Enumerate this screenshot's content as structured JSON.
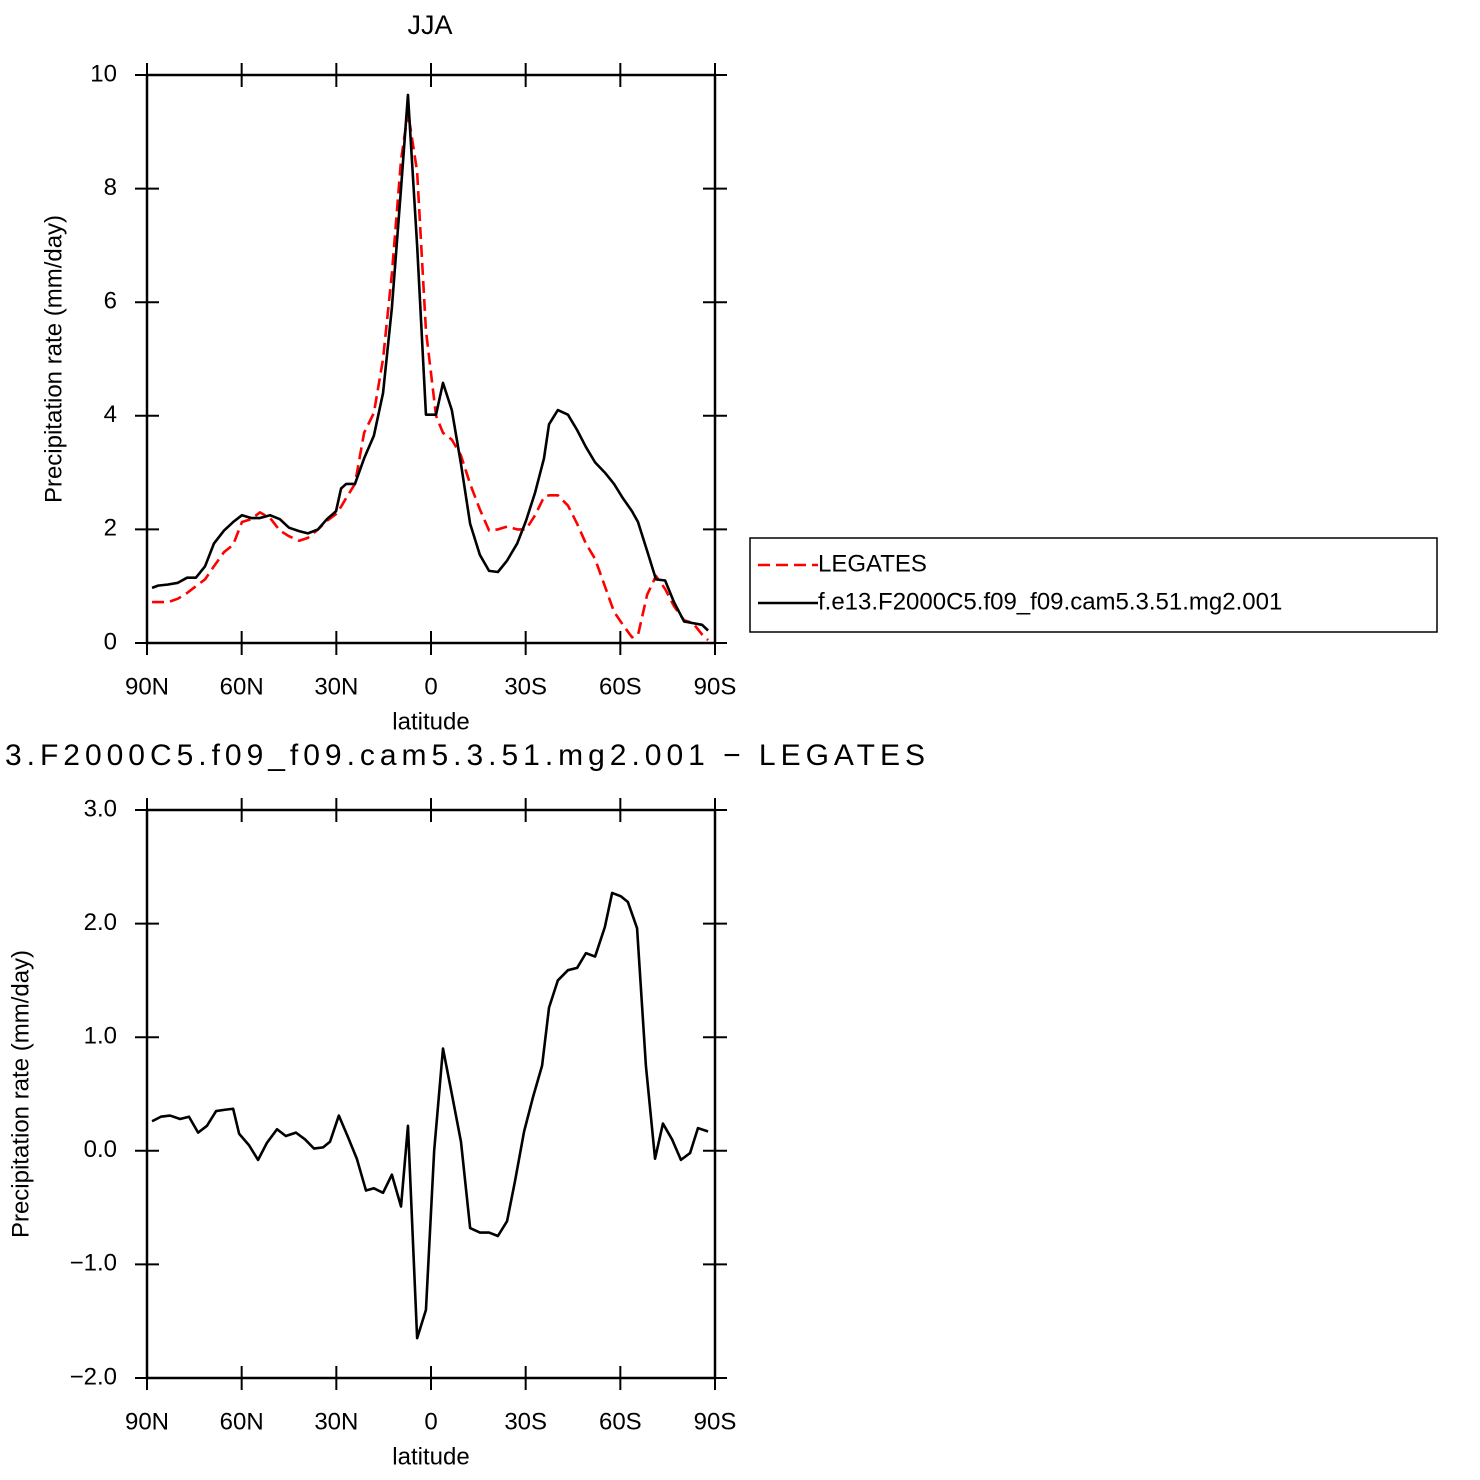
{
  "chart_data": [
    {
      "type": "line",
      "title": "JJA",
      "xlabel": "latitude",
      "ylabel": "Precipitation rate (mm/day)",
      "x": [
        88.4,
        86.5,
        83.3,
        80.2,
        77.3,
        74.5,
        71.6,
        68.8,
        65.6,
        62.7,
        59.9,
        57.0,
        54.2,
        51.0,
        47.9,
        45.0,
        41.8,
        39.0,
        35.8,
        33.0,
        30.1,
        28.5,
        26.9,
        24.1,
        21.2,
        18.1,
        15.2,
        12.4,
        9.5,
        7.3,
        4.4,
        1.6,
        -1.6,
        -3.8,
        -6.6,
        -9.5,
        -12.4,
        -15.5,
        -18.4,
        -21.2,
        -24.1,
        -27.3,
        -30.1,
        -33.0,
        -35.8,
        -37.4,
        -40.2,
        -43.4,
        -46.3,
        -49.1,
        -52.0,
        -55.1,
        -58.0,
        -60.8,
        -63.7,
        -65.6,
        -68.5,
        -71.3,
        -74.2,
        -77.0,
        -80.2,
        -83.0,
        -85.9,
        -87.8
      ],
      "series": [
        {
          "name": "LEGATES",
          "color": "#ff0000",
          "dashed": true,
          "values": [
            0.72,
            0.72,
            0.72,
            0.78,
            0.88,
            1.0,
            1.12,
            1.35,
            1.6,
            1.73,
            2.13,
            2.18,
            2.3,
            2.2,
            1.98,
            1.88,
            1.8,
            1.85,
            2.0,
            2.15,
            2.27,
            2.4,
            2.55,
            2.8,
            3.7,
            4.05,
            5.0,
            6.5,
            8.5,
            9.35,
            8.3,
            5.5,
            4.0,
            3.7,
            3.58,
            3.3,
            2.8,
            2.35,
            1.98,
            2.0,
            2.05,
            2.0,
            2.0,
            2.25,
            2.57,
            2.6,
            2.6,
            2.42,
            2.1,
            1.75,
            1.48,
            1.0,
            0.55,
            0.32,
            0.1,
            0.14,
            0.85,
            1.18,
            0.95,
            0.65,
            0.4,
            0.35,
            0.15,
            0.05
          ]
        },
        {
          "name": "f.e13.F2000C5.f09_f09.cam5.3.51.mg2.001",
          "color": "#000000",
          "dashed": false,
          "values": [
            0.97,
            1.01,
            1.03,
            1.06,
            1.15,
            1.15,
            1.35,
            1.75,
            1.98,
            2.13,
            2.25,
            2.2,
            2.2,
            2.25,
            2.18,
            2.03,
            1.97,
            1.93,
            2.0,
            2.18,
            2.32,
            2.72,
            2.8,
            2.8,
            3.25,
            3.65,
            4.4,
            5.9,
            8.0,
            9.65,
            7.0,
            4.02,
            4.02,
            4.58,
            4.1,
            3.15,
            2.1,
            1.55,
            1.27,
            1.25,
            1.45,
            1.75,
            2.15,
            2.65,
            3.25,
            3.85,
            4.1,
            4.02,
            3.75,
            3.45,
            3.18,
            3.0,
            2.8,
            2.55,
            2.32,
            2.13,
            1.62,
            1.12,
            1.1,
            0.72,
            0.38,
            0.35,
            0.32,
            0.22
          ]
        }
      ],
      "xlim": [
        90,
        -90
      ],
      "xticks": [
        {
          "value": 90,
          "label": "90N"
        },
        {
          "value": 60,
          "label": "60N"
        },
        {
          "value": 30,
          "label": "30N"
        },
        0,
        {
          "value": -30,
          "label": "30S"
        },
        {
          "value": -60,
          "label": "60S"
        },
        {
          "value": -90,
          "label": "90S"
        }
      ],
      "ylim": [
        0,
        10
      ],
      "yticks": [
        0,
        2,
        4,
        6,
        8,
        10
      ],
      "grid": false,
      "legend": "right"
    },
    {
      "type": "line",
      "title": "3.F2000C5.f09_f09.cam5.3.51.mg2.001 − LEGATES",
      "xlabel": "latitude",
      "ylabel": "Precipitation rate (mm/day)",
      "x": [
        88.4,
        85.6,
        82.7,
        79.5,
        76.7,
        73.8,
        71.0,
        68.1,
        65.6,
        62.7,
        60.8,
        57.7,
        54.8,
        52.0,
        48.8,
        46.0,
        42.8,
        39.9,
        37.1,
        34.2,
        32.0,
        29.2,
        26.3,
        23.5,
        20.6,
        18.1,
        15.2,
        12.4,
        9.5,
        7.3,
        4.4,
        1.6,
        -1.0,
        -3.8,
        -6.6,
        -9.5,
        -12.4,
        -15.5,
        -18.4,
        -21.2,
        -24.1,
        -26.6,
        -29.5,
        -32.3,
        -35.2,
        -37.4,
        -40.2,
        -43.4,
        -46.3,
        -49.1,
        -52.0,
        -55.1,
        -57.4,
        -60.2,
        -62.4,
        -65.3,
        -68.1,
        -71.0,
        -73.5,
        -76.4,
        -79.2,
        -82.1,
        -84.6,
        -87.8
      ],
      "color": "#000000",
      "values": [
        0.26,
        0.3,
        0.31,
        0.28,
        0.3,
        0.16,
        0.22,
        0.35,
        0.36,
        0.37,
        0.15,
        0.05,
        -0.08,
        0.07,
        0.19,
        0.13,
        0.16,
        0.1,
        0.02,
        0.03,
        0.08,
        0.31,
        0.12,
        -0.07,
        -0.35,
        -0.33,
        -0.37,
        -0.21,
        -0.49,
        0.22,
        -1.65,
        -1.4,
        0.0,
        0.9,
        0.5,
        0.08,
        -0.68,
        -0.72,
        -0.72,
        -0.75,
        -0.62,
        -0.27,
        0.17,
        0.47,
        0.75,
        1.26,
        1.5,
        1.59,
        1.61,
        1.74,
        1.71,
        1.97,
        2.27,
        2.24,
        2.19,
        1.96,
        0.75,
        -0.07,
        0.24,
        0.1,
        -0.08,
        -0.02,
        0.2,
        0.17
      ],
      "xlim": [
        90,
        -90
      ],
      "xticks": [
        {
          "value": 90,
          "label": "90N"
        },
        {
          "value": 60,
          "label": "60N"
        },
        {
          "value": 30,
          "label": "30N"
        },
        0,
        {
          "value": -30,
          "label": "30S"
        },
        {
          "value": -60,
          "label": "60S"
        },
        {
          "value": -90,
          "label": "90S"
        }
      ],
      "ylim": [
        -2,
        3
      ],
      "yticks": [
        {
          "value": -2,
          "label": "−2.0"
        },
        {
          "value": -1,
          "label": "−1.0"
        },
        {
          "value": 0,
          "label": "0.0"
        },
        {
          "value": 1,
          "label": "1.0"
        },
        {
          "value": 2,
          "label": "2.0"
        },
        {
          "value": 3,
          "label": "3.0"
        }
      ],
      "grid": false
    }
  ]
}
